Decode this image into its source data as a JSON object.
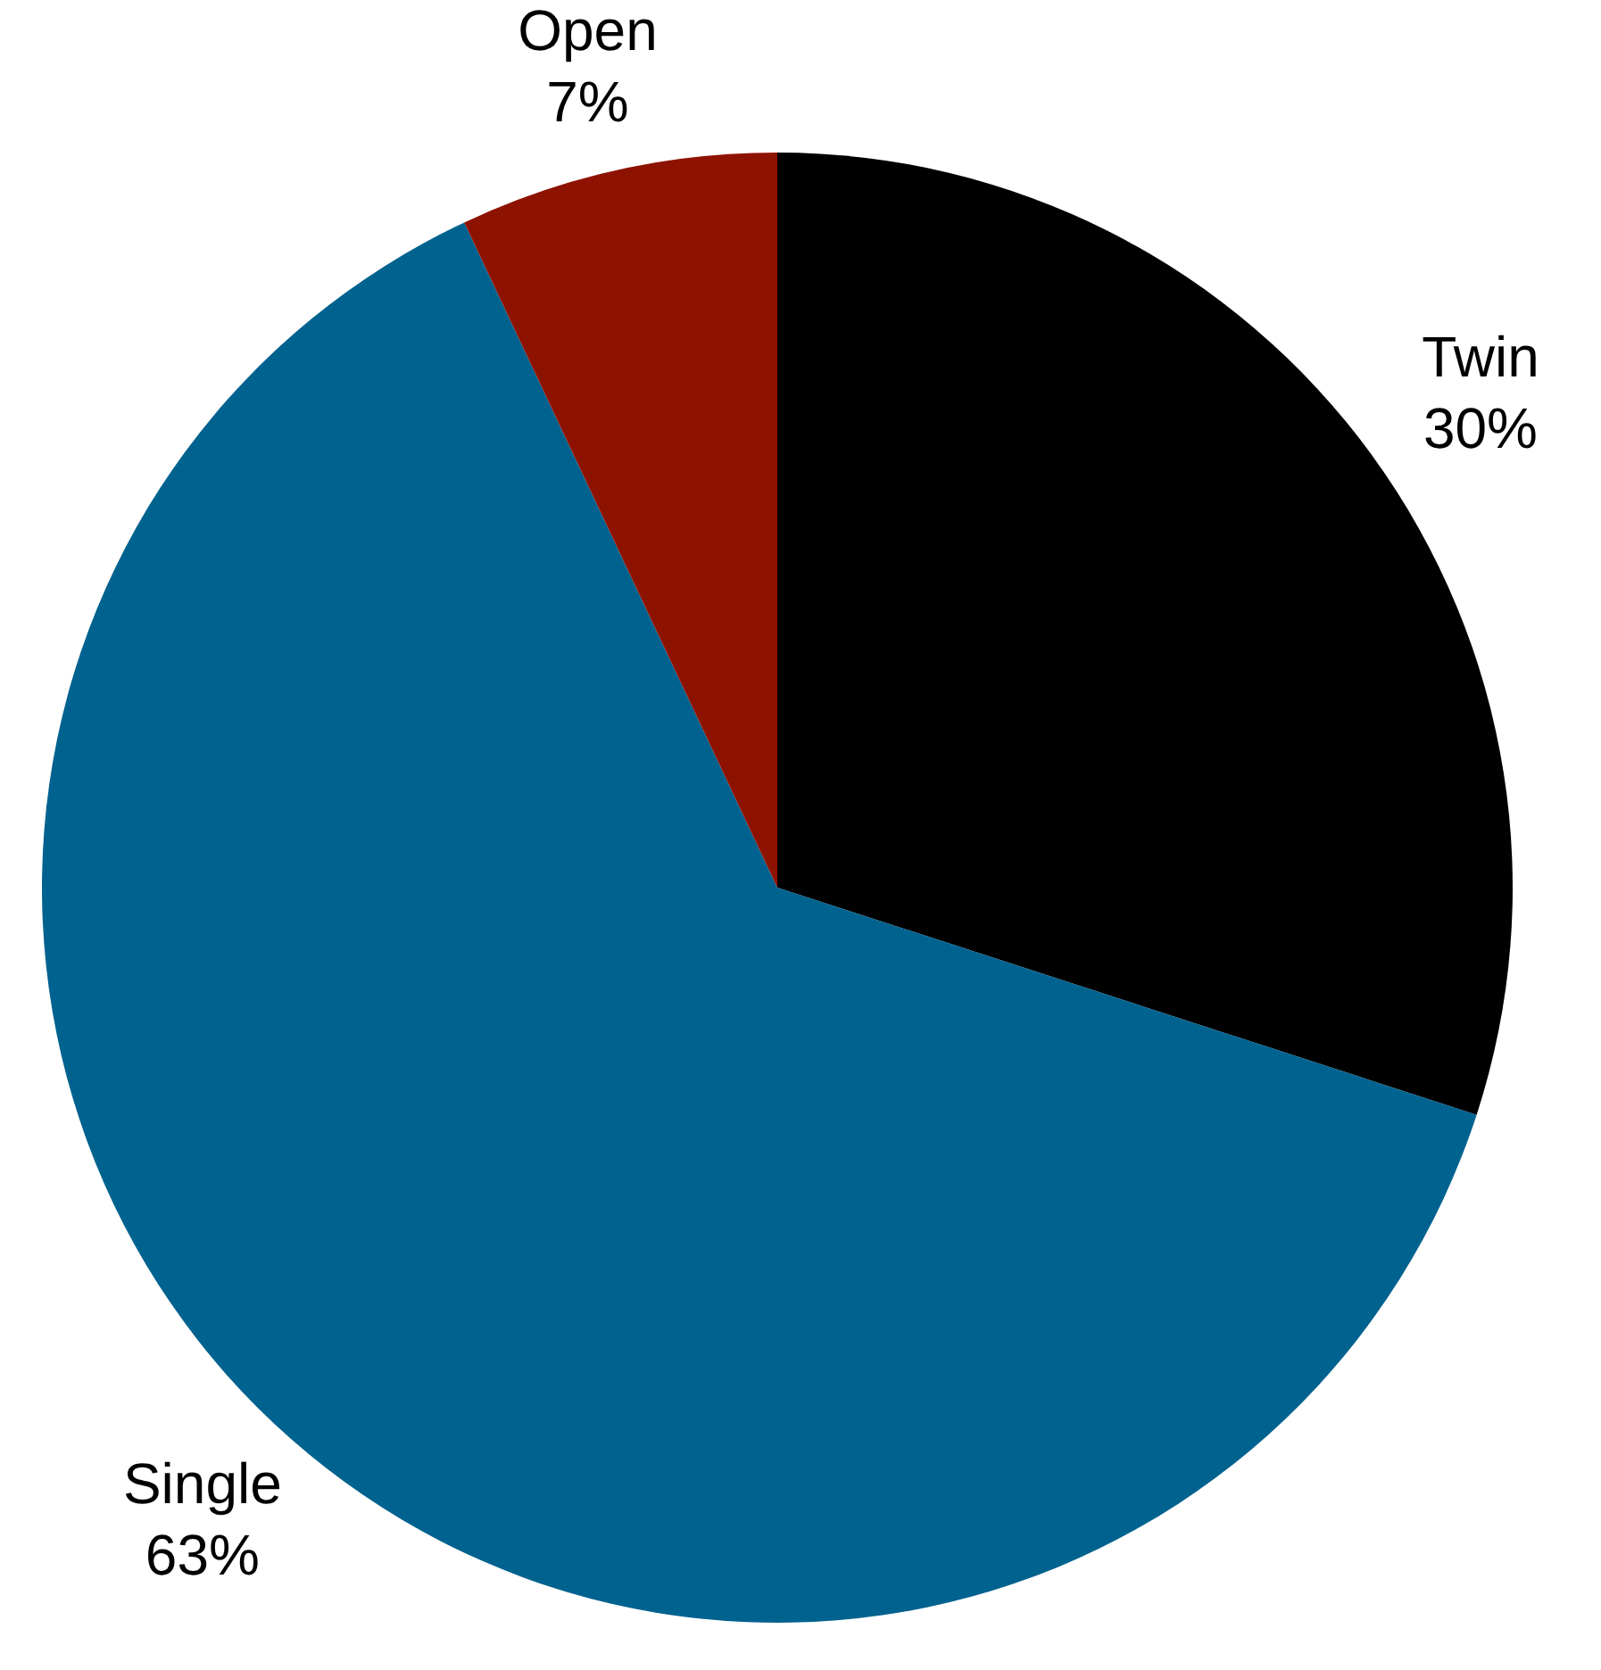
{
  "chart_data": {
    "type": "pie",
    "categories": [
      "Twin",
      "Single",
      "Open"
    ],
    "values": [
      30,
      63,
      7
    ],
    "colors": [
      "#000000",
      "#00628f",
      "#8e1200"
    ],
    "value_labels": [
      "30%",
      "63%",
      "7%"
    ]
  }
}
